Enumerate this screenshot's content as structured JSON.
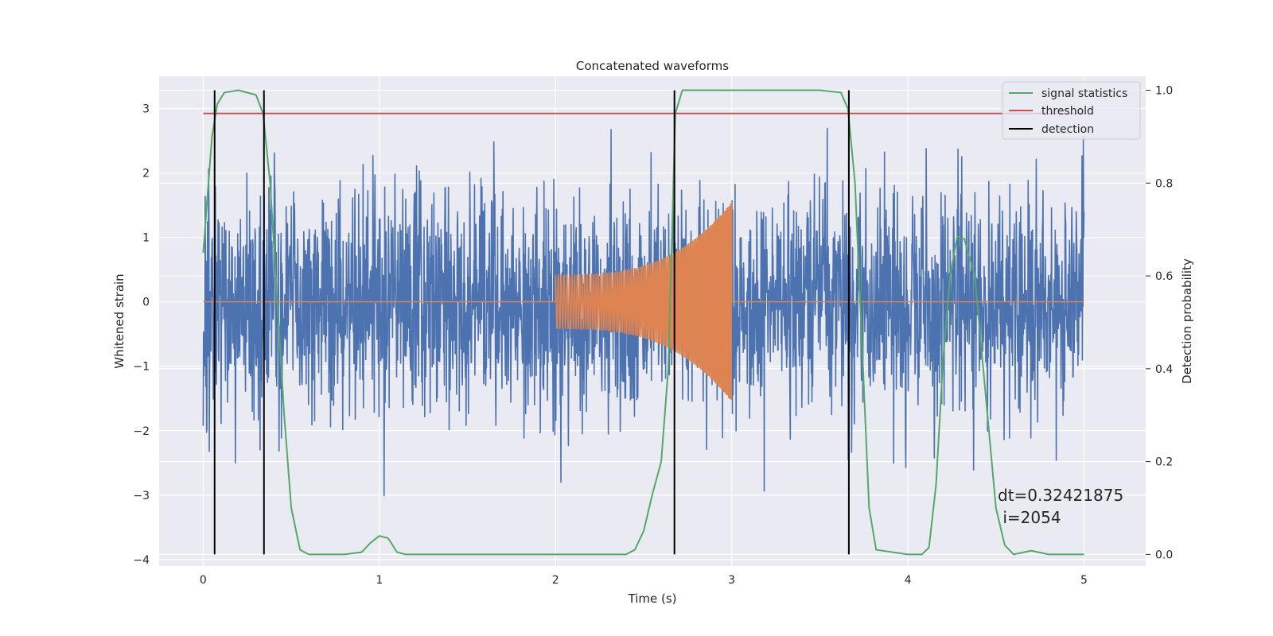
{
  "chart_data": {
    "type": "line",
    "title": "Concatenated waveforms",
    "xlabel": "Time (s)",
    "ylabel": "Whitened strain",
    "y2label": "Detection probability",
    "xlim": [
      -0.25,
      5.35
    ],
    "ylim": [
      -4.1,
      3.5
    ],
    "y2lim": [
      -0.025,
      1.03
    ],
    "xticks": [
      0,
      1,
      2,
      3,
      4,
      5
    ],
    "yticks": [
      -4,
      -3,
      -2,
      -1,
      0,
      1,
      2,
      3
    ],
    "y2ticks": [
      0.0,
      0.2,
      0.4,
      0.6,
      0.8,
      1.0
    ],
    "grid": true,
    "legend_position": "top-right",
    "colors": {
      "strain": "#4c72b0",
      "template": "#dd8452",
      "signal_statistics": "#55a868",
      "threshold": "#c44e52",
      "detection": "#000000",
      "background": "#eaeaf2"
    },
    "series": [
      {
        "kind": "noisy_strain",
        "x_range": [
          0,
          5
        ],
        "envelope_sigma": 0.85
      },
      {
        "kind": "chirp_template",
        "x_range": [
          0,
          5
        ],
        "active_range": [
          2.0,
          3.0
        ],
        "start_amplitude": 0.42,
        "end_amplitude": 1.55
      },
      {
        "name": "signal statistics",
        "axis": "right",
        "x": [
          0,
          0.05,
          0.08,
          0.12,
          0.2,
          0.3,
          0.34,
          0.38,
          0.42,
          0.46,
          0.5,
          0.55,
          0.6,
          0.8,
          0.9,
          0.95,
          1.0,
          1.05,
          1.1,
          1.15,
          1.2,
          2.4,
          2.45,
          2.5,
          2.55,
          2.6,
          2.64,
          2.68,
          2.72,
          3.0,
          3.5,
          3.62,
          3.66,
          3.7,
          3.74,
          3.78,
          3.82,
          4.0,
          4.08,
          4.12,
          4.16,
          4.2,
          4.24,
          4.28,
          4.32,
          4.38,
          4.44,
          4.5,
          4.55,
          4.6,
          4.7,
          4.8,
          5.0
        ],
        "y": [
          0.65,
          0.9,
          0.97,
          0.995,
          1.0,
          0.99,
          0.95,
          0.8,
          0.55,
          0.3,
          0.1,
          0.01,
          0.0,
          0.0,
          0.005,
          0.025,
          0.04,
          0.035,
          0.005,
          0.0,
          0.0,
          0.0,
          0.01,
          0.05,
          0.13,
          0.2,
          0.4,
          0.95,
          1.0,
          1.0,
          1.0,
          0.995,
          0.96,
          0.8,
          0.45,
          0.1,
          0.01,
          0.0,
          0.0,
          0.015,
          0.15,
          0.42,
          0.6,
          0.685,
          0.68,
          0.6,
          0.35,
          0.1,
          0.02,
          0.0,
          0.008,
          0.0,
          0.0
        ]
      },
      {
        "name": "threshold",
        "axis": "right",
        "x": [
          0,
          5
        ],
        "y": [
          0.95,
          0.95
        ]
      },
      {
        "name": "detection",
        "axis": "right",
        "vlines": [
          0.065,
          0.345,
          2.675,
          3.665
        ],
        "ymin": 0.0,
        "ymax": 1.0
      }
    ],
    "annotation": {
      "line1": "dt=0.32421875",
      "line2": " i=2054",
      "x": 4.5,
      "y": -3.1
    }
  }
}
